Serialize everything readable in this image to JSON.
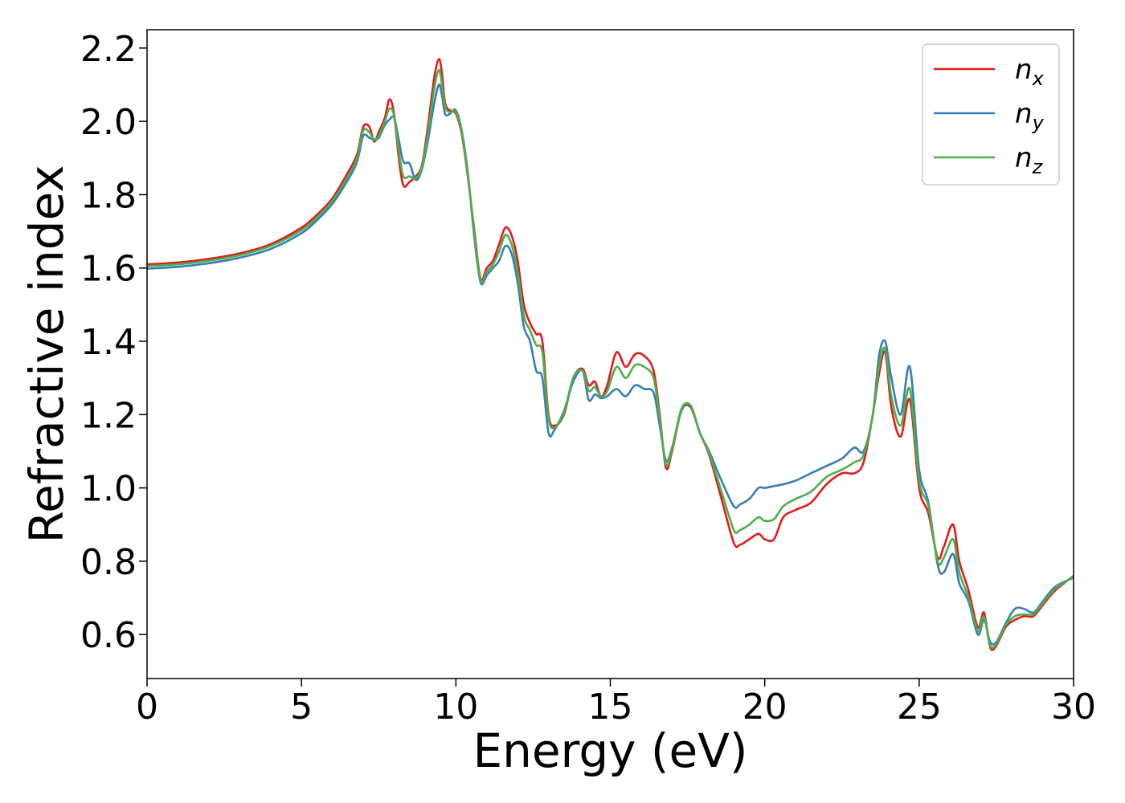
{
  "chart_data": {
    "type": "line",
    "xlabel": "Energy (eV)",
    "ylabel": "Refractive index",
    "xlim": [
      0,
      30
    ],
    "ylim": [
      0.48,
      2.25
    ],
    "xticks": [
      0,
      5,
      10,
      15,
      20,
      25,
      30
    ],
    "xtick_labels": [
      "0",
      "5",
      "10",
      "15",
      "20",
      "25",
      "30"
    ],
    "yticks": [
      0.6,
      0.8,
      1.0,
      1.2,
      1.4,
      1.6,
      1.8,
      2.0,
      2.2
    ],
    "ytick_labels": [
      "0.6",
      "0.8",
      "1.0",
      "1.2",
      "1.4",
      "1.6",
      "1.8",
      "2.0",
      "2.2"
    ],
    "grid": false,
    "legend_position": "top-right",
    "series": [
      {
        "name": "n",
        "subscript": "x",
        "color": "#e41a1c",
        "x": [
          0,
          1,
          2,
          3,
          4,
          5,
          5.5,
          6,
          6.5,
          6.8,
          7.0,
          7.2,
          7.35,
          7.5,
          7.7,
          7.85,
          8.0,
          8.15,
          8.3,
          8.5,
          8.7,
          8.9,
          9.1,
          9.3,
          9.45,
          9.55,
          9.65,
          9.8,
          10.0,
          10.2,
          10.4,
          10.6,
          10.8,
          11.0,
          11.2,
          11.4,
          11.6,
          11.8,
          12.0,
          12.2,
          12.4,
          12.6,
          12.8,
          13.0,
          13.2,
          13.5,
          13.8,
          14.1,
          14.3,
          14.5,
          14.7,
          14.9,
          15.2,
          15.5,
          15.8,
          16.1,
          16.4,
          16.6,
          16.8,
          17.0,
          17.3,
          17.6,
          17.9,
          18.2,
          18.6,
          19.0,
          19.2,
          19.5,
          19.8,
          20.0,
          20.3,
          20.6,
          21.0,
          21.5,
          22.0,
          22.5,
          22.9,
          23.2,
          23.5,
          23.7,
          23.9,
          24.1,
          24.4,
          24.7,
          25.0,
          25.3,
          25.6,
          25.8,
          26.1,
          26.3,
          26.6,
          26.9,
          27.1,
          27.3,
          27.5,
          27.8,
          28.1,
          28.4,
          28.7,
          29.0,
          29.4,
          30.0
        ],
        "y": [
          1.61,
          1.615,
          1.625,
          1.64,
          1.665,
          1.71,
          1.745,
          1.79,
          1.86,
          1.91,
          1.985,
          1.985,
          1.945,
          1.97,
          2.01,
          2.06,
          2.02,
          1.9,
          1.825,
          1.835,
          1.85,
          1.88,
          1.99,
          2.12,
          2.17,
          2.13,
          2.05,
          2.03,
          2.02,
          1.96,
          1.84,
          1.7,
          1.57,
          1.6,
          1.62,
          1.665,
          1.71,
          1.69,
          1.62,
          1.5,
          1.45,
          1.42,
          1.4,
          1.2,
          1.17,
          1.2,
          1.3,
          1.325,
          1.28,
          1.29,
          1.25,
          1.28,
          1.37,
          1.33,
          1.365,
          1.36,
          1.32,
          1.2,
          1.055,
          1.1,
          1.21,
          1.22,
          1.15,
          1.09,
          0.97,
          0.85,
          0.845,
          0.86,
          0.875,
          0.86,
          0.86,
          0.92,
          0.94,
          0.96,
          1.01,
          1.04,
          1.04,
          1.07,
          1.2,
          1.31,
          1.37,
          1.22,
          1.14,
          1.24,
          1.0,
          0.93,
          0.81,
          0.84,
          0.9,
          0.8,
          0.72,
          0.62,
          0.66,
          0.565,
          0.57,
          0.62,
          0.64,
          0.65,
          0.65,
          0.68,
          0.72,
          0.76
        ]
      },
      {
        "name": "n",
        "subscript": "y",
        "color": "#377eb8",
        "x": [
          0,
          1,
          2,
          3,
          4,
          5,
          5.5,
          6,
          6.5,
          6.8,
          7.0,
          7.2,
          7.35,
          7.5,
          7.7,
          7.85,
          8.0,
          8.15,
          8.3,
          8.5,
          8.7,
          8.9,
          9.1,
          9.3,
          9.45,
          9.55,
          9.65,
          9.8,
          10.0,
          10.2,
          10.4,
          10.6,
          10.8,
          11.0,
          11.2,
          11.4,
          11.6,
          11.8,
          12.0,
          12.2,
          12.4,
          12.6,
          12.8,
          13.0,
          13.2,
          13.5,
          13.8,
          14.1,
          14.3,
          14.5,
          14.7,
          14.9,
          15.2,
          15.5,
          15.8,
          16.1,
          16.4,
          16.6,
          16.8,
          17.0,
          17.3,
          17.6,
          17.9,
          18.2,
          18.6,
          19.0,
          19.2,
          19.5,
          19.8,
          20.0,
          20.3,
          20.6,
          21.0,
          21.5,
          22.0,
          22.5,
          22.9,
          23.2,
          23.5,
          23.7,
          23.9,
          24.1,
          24.4,
          24.7,
          25.0,
          25.3,
          25.6,
          25.8,
          26.1,
          26.3,
          26.6,
          26.9,
          27.1,
          27.3,
          27.5,
          27.8,
          28.1,
          28.4,
          28.7,
          29.0,
          29.4,
          30.0
        ],
        "y": [
          1.598,
          1.603,
          1.613,
          1.628,
          1.652,
          1.695,
          1.73,
          1.775,
          1.84,
          1.89,
          1.96,
          1.955,
          1.95,
          1.955,
          1.99,
          2.005,
          2.01,
          1.95,
          1.89,
          1.885,
          1.84,
          1.87,
          1.95,
          2.05,
          2.1,
          2.07,
          2.02,
          2.02,
          2.03,
          1.97,
          1.85,
          1.68,
          1.56,
          1.58,
          1.6,
          1.62,
          1.66,
          1.64,
          1.56,
          1.44,
          1.4,
          1.32,
          1.3,
          1.15,
          1.16,
          1.21,
          1.29,
          1.32,
          1.24,
          1.255,
          1.245,
          1.25,
          1.27,
          1.25,
          1.28,
          1.27,
          1.26,
          1.17,
          1.075,
          1.11,
          1.21,
          1.225,
          1.15,
          1.1,
          1.02,
          0.95,
          0.955,
          0.97,
          1.0,
          1.0,
          1.005,
          1.01,
          1.02,
          1.04,
          1.06,
          1.08,
          1.11,
          1.1,
          1.2,
          1.36,
          1.4,
          1.3,
          1.2,
          1.33,
          1.05,
          0.96,
          0.79,
          0.77,
          0.82,
          0.74,
          0.69,
          0.6,
          0.64,
          0.58,
          0.58,
          0.63,
          0.67,
          0.67,
          0.66,
          0.69,
          0.73,
          0.755
        ]
      },
      {
        "name": "n",
        "subscript": "z",
        "color": "#4daf4a",
        "x": [
          0,
          1,
          2,
          3,
          4,
          5,
          5.5,
          6,
          6.5,
          6.8,
          7.0,
          7.2,
          7.35,
          7.5,
          7.7,
          7.85,
          8.0,
          8.15,
          8.3,
          8.5,
          8.7,
          8.9,
          9.1,
          9.3,
          9.45,
          9.55,
          9.65,
          9.8,
          10.0,
          10.2,
          10.4,
          10.6,
          10.8,
          11.0,
          11.2,
          11.4,
          11.6,
          11.8,
          12.0,
          12.2,
          12.4,
          12.6,
          12.8,
          13.0,
          13.2,
          13.5,
          13.8,
          14.1,
          14.3,
          14.5,
          14.7,
          14.9,
          15.2,
          15.5,
          15.8,
          16.1,
          16.4,
          16.6,
          16.8,
          17.0,
          17.3,
          17.6,
          17.9,
          18.2,
          18.6,
          19.0,
          19.2,
          19.5,
          19.8,
          20.0,
          20.3,
          20.6,
          21.0,
          21.5,
          22.0,
          22.5,
          22.9,
          23.2,
          23.5,
          23.7,
          23.9,
          24.1,
          24.4,
          24.7,
          25.0,
          25.3,
          25.6,
          25.8,
          26.1,
          26.3,
          26.6,
          26.9,
          27.1,
          27.3,
          27.5,
          27.8,
          28.1,
          28.4,
          28.7,
          29.0,
          29.4,
          30.0
        ],
        "y": [
          1.605,
          1.61,
          1.62,
          1.635,
          1.66,
          1.703,
          1.738,
          1.783,
          1.85,
          1.9,
          1.975,
          1.97,
          1.95,
          1.96,
          2.0,
          2.035,
          2.015,
          1.92,
          1.85,
          1.85,
          1.845,
          1.875,
          1.97,
          2.09,
          2.14,
          2.1,
          2.04,
          2.025,
          2.025,
          1.965,
          1.845,
          1.69,
          1.565,
          1.59,
          1.61,
          1.645,
          1.69,
          1.665,
          1.59,
          1.47,
          1.43,
          1.39,
          1.37,
          1.19,
          1.165,
          1.205,
          1.3,
          1.32,
          1.265,
          1.275,
          1.25,
          1.265,
          1.33,
          1.3,
          1.335,
          1.33,
          1.3,
          1.19,
          1.065,
          1.105,
          1.215,
          1.225,
          1.15,
          1.095,
          0.99,
          0.885,
          0.885,
          0.9,
          0.92,
          0.91,
          0.915,
          0.95,
          0.97,
          0.99,
          1.03,
          1.05,
          1.07,
          1.09,
          1.2,
          1.33,
          1.38,
          1.25,
          1.17,
          1.27,
          1.02,
          0.95,
          0.8,
          0.81,
          0.86,
          0.77,
          0.7,
          0.61,
          0.65,
          0.57,
          0.575,
          0.625,
          0.65,
          0.655,
          0.655,
          0.685,
          0.725,
          0.758
        ]
      }
    ]
  }
}
